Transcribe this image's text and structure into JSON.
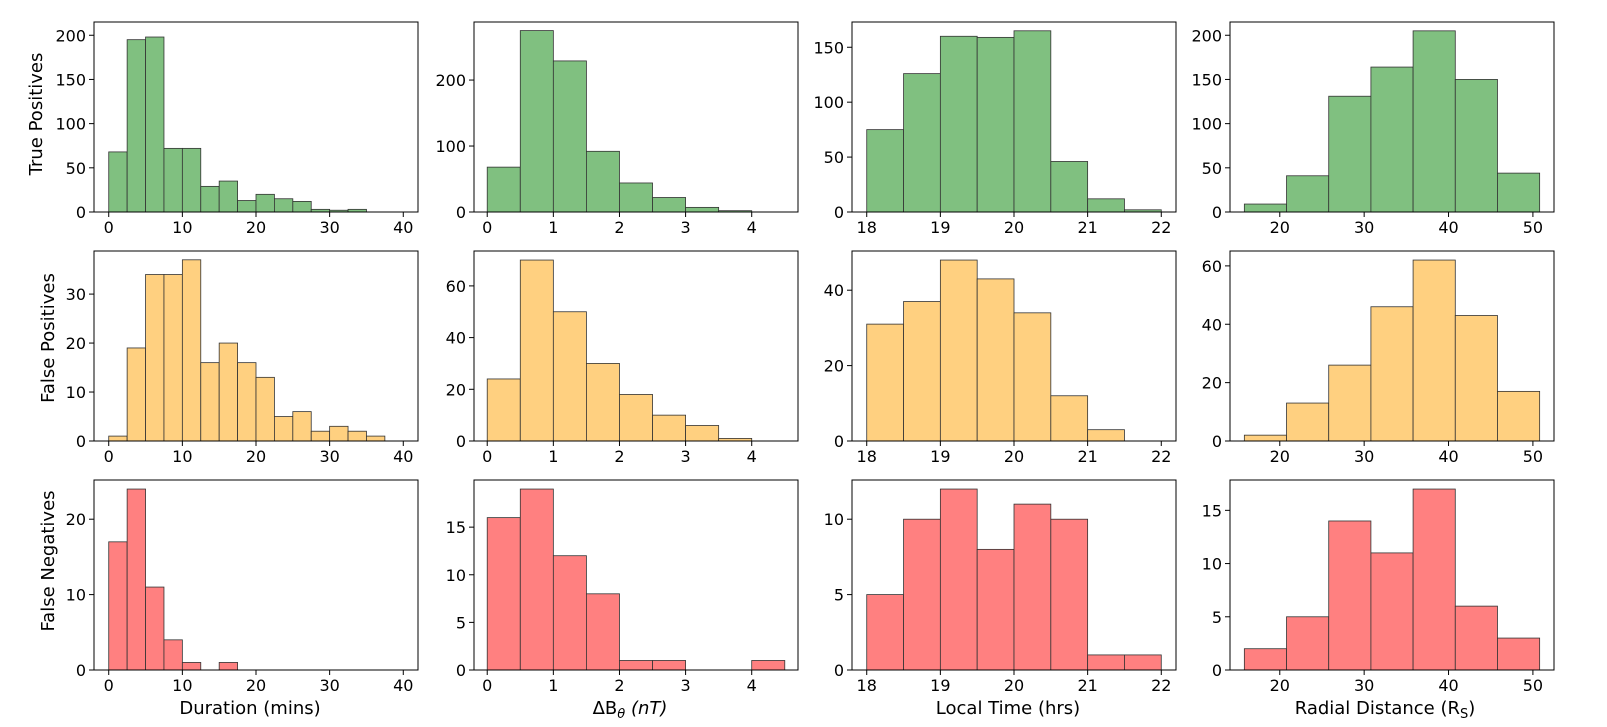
{
  "figure": {
    "row_labels": [
      "True Positives",
      "False Positives",
      "False Negatives"
    ],
    "col_labels": [
      {
        "main": "Duration (mins)",
        "sub": ""
      },
      {
        "main": "ΔB",
        "sub": "θ",
        "suffix": " (nT)"
      },
      {
        "main": "Local Time (hrs)",
        "sub": ""
      },
      {
        "main": "Radial Distance (R",
        "sub": "S",
        "suffix": ")"
      }
    ],
    "colors": {
      "true_positives": "#80c080",
      "false_positives": "#ffd080",
      "false_negatives": "#ff8080",
      "edge": "#333333"
    }
  },
  "chart_data": [
    {
      "type": "bar",
      "row": 0,
      "col": 0,
      "series": "True Positives",
      "variable": "Duration (mins)",
      "bin_edges": [
        0,
        2.5,
        5,
        7.5,
        10,
        12.5,
        15,
        17.5,
        20,
        22.5,
        25,
        27.5,
        30,
        32.5,
        35,
        37.5,
        40
      ],
      "values": [
        68,
        195,
        198,
        72,
        72,
        29,
        35,
        13,
        20,
        15,
        12,
        3,
        2,
        3,
        0,
        0
      ],
      "xlim": [
        -2,
        42
      ],
      "ylim": [
        0,
        215
      ],
      "xticks": [
        0,
        10,
        20,
        30,
        40
      ],
      "yticks": [
        0,
        50,
        100,
        150,
        200
      ]
    },
    {
      "type": "bar",
      "row": 0,
      "col": 1,
      "series": "True Positives",
      "variable": "ΔBθ (nT)",
      "bin_edges": [
        0,
        0.5,
        1,
        1.5,
        2,
        2.5,
        3,
        3.5,
        4,
        4.5
      ],
      "values": [
        68,
        275,
        229,
        92,
        44,
        22,
        7,
        2,
        0
      ],
      "xlim": [
        -0.2,
        4.7
      ],
      "ylim": [
        0,
        288
      ],
      "xticks": [
        0,
        1,
        2,
        3,
        4
      ],
      "yticks": [
        0,
        100,
        200
      ]
    },
    {
      "type": "bar",
      "row": 0,
      "col": 2,
      "series": "True Positives",
      "variable": "Local Time (hrs)",
      "bin_edges": [
        18,
        18.5,
        19,
        19.5,
        20,
        20.5,
        21,
        21.5,
        22
      ],
      "values": [
        75,
        126,
        160,
        159,
        165,
        46,
        12,
        2
      ],
      "xlim": [
        17.8,
        22.2
      ],
      "ylim": [
        0,
        173
      ],
      "xticks": [
        18,
        19,
        20,
        21,
        22
      ],
      "yticks": [
        0,
        50,
        100,
        150
      ]
    },
    {
      "type": "bar",
      "row": 0,
      "col": 3,
      "series": "True Positives",
      "variable": "Radial Distance (RS)",
      "bin_edges": [
        15.8,
        20.8,
        25.8,
        30.8,
        35.8,
        40.8,
        45.8,
        50.8
      ],
      "values": [
        9,
        41,
        131,
        164,
        205,
        150,
        44
      ],
      "xlim": [
        14.1,
        52.5
      ],
      "ylim": [
        0,
        215
      ],
      "xticks": [
        20,
        30,
        40,
        50
      ],
      "yticks": [
        0,
        50,
        100,
        150,
        200
      ]
    },
    {
      "type": "bar",
      "row": 1,
      "col": 0,
      "series": "False Positives",
      "variable": "Duration (mins)",
      "bin_edges": [
        0,
        2.5,
        5,
        7.5,
        10,
        12.5,
        15,
        17.5,
        20,
        22.5,
        25,
        27.5,
        30,
        32.5,
        35,
        37.5,
        40
      ],
      "values": [
        1,
        19,
        34,
        34,
        37,
        16,
        20,
        16,
        13,
        5,
        6,
        2,
        3,
        2,
        1,
        0
      ],
      "xlim": [
        -2,
        42
      ],
      "ylim": [
        0,
        38.8
      ],
      "xticks": [
        0,
        10,
        20,
        30,
        40
      ],
      "yticks": [
        0,
        10,
        20,
        30
      ]
    },
    {
      "type": "bar",
      "row": 1,
      "col": 1,
      "series": "False Positives",
      "variable": "ΔBθ (nT)",
      "bin_edges": [
        0,
        0.5,
        1,
        1.5,
        2,
        2.5,
        3,
        3.5,
        4,
        4.5
      ],
      "values": [
        24,
        70,
        50,
        30,
        18,
        10,
        6,
        1,
        0
      ],
      "xlim": [
        -0.2,
        4.7
      ],
      "ylim": [
        0,
        73.5
      ],
      "xticks": [
        0,
        1,
        2,
        3,
        4
      ],
      "yticks": [
        0,
        20,
        40,
        60
      ]
    },
    {
      "type": "bar",
      "row": 1,
      "col": 2,
      "series": "False Positives",
      "variable": "Local Time (hrs)",
      "bin_edges": [
        18,
        18.5,
        19,
        19.5,
        20,
        20.5,
        21,
        21.5,
        22
      ],
      "values": [
        31,
        37,
        48,
        43,
        34,
        12,
        3,
        0
      ],
      "xlim": [
        17.8,
        22.2
      ],
      "ylim": [
        0,
        50.4
      ],
      "xticks": [
        18,
        19,
        20,
        21,
        22
      ],
      "yticks": [
        0,
        20,
        40
      ]
    },
    {
      "type": "bar",
      "row": 1,
      "col": 3,
      "series": "False Positives",
      "variable": "Radial Distance (RS)",
      "bin_edges": [
        15.8,
        20.8,
        25.8,
        30.8,
        35.8,
        40.8,
        45.8,
        50.8
      ],
      "values": [
        2,
        13,
        26,
        46,
        62,
        43,
        17
      ],
      "xlim": [
        14.1,
        52.5
      ],
      "ylim": [
        0,
        65.1
      ],
      "xticks": [
        20,
        30,
        40,
        50
      ],
      "yticks": [
        0,
        20,
        40,
        60
      ]
    },
    {
      "type": "bar",
      "row": 2,
      "col": 0,
      "series": "False Negatives",
      "variable": "Duration (mins)",
      "bin_edges": [
        0,
        2.5,
        5,
        7.5,
        10,
        12.5,
        15,
        17.5,
        20,
        22.5,
        25,
        27.5,
        30,
        32.5,
        35,
        37.5,
        40
      ],
      "values": [
        17,
        24,
        11,
        4,
        1,
        0,
        1,
        0,
        0,
        0,
        0,
        0,
        0,
        0,
        0,
        0
      ],
      "xlim": [
        -2,
        42
      ],
      "ylim": [
        0,
        25.2
      ],
      "xticks": [
        0,
        10,
        20,
        30,
        40
      ],
      "yticks": [
        0,
        10,
        20
      ]
    },
    {
      "type": "bar",
      "row": 2,
      "col": 1,
      "series": "False Negatives",
      "variable": "ΔBθ (nT)",
      "bin_edges": [
        0,
        0.5,
        1,
        1.5,
        2,
        2.5,
        3,
        3.5,
        4,
        4.5
      ],
      "values": [
        16,
        19,
        12,
        8,
        1,
        1,
        0,
        0,
        1
      ],
      "xlim": [
        -0.2,
        4.7
      ],
      "ylim": [
        0,
        19.95
      ],
      "xticks": [
        0,
        1,
        2,
        3,
        4
      ],
      "yticks": [
        0,
        5,
        10,
        15
      ]
    },
    {
      "type": "bar",
      "row": 2,
      "col": 2,
      "series": "False Negatives",
      "variable": "Local Time (hrs)",
      "bin_edges": [
        18,
        18.5,
        19,
        19.5,
        20,
        20.5,
        21,
        21.5,
        22
      ],
      "values": [
        5,
        10,
        12,
        8,
        11,
        10,
        1,
        1
      ],
      "xlim": [
        17.8,
        22.2
      ],
      "ylim": [
        0,
        12.6
      ],
      "xticks": [
        18,
        19,
        20,
        21,
        22
      ],
      "yticks": [
        0,
        5,
        10
      ]
    },
    {
      "type": "bar",
      "row": 2,
      "col": 3,
      "series": "False Negatives",
      "variable": "Radial Distance (RS)",
      "bin_edges": [
        15.8,
        20.8,
        25.8,
        30.8,
        35.8,
        40.8,
        45.8,
        50.8
      ],
      "values": [
        2,
        5,
        14,
        11,
        17,
        6,
        3
      ],
      "xlim": [
        14.1,
        52.5
      ],
      "ylim": [
        0,
        17.85
      ],
      "xticks": [
        20,
        30,
        40,
        50
      ],
      "yticks": [
        0,
        5,
        10,
        15
      ]
    }
  ]
}
